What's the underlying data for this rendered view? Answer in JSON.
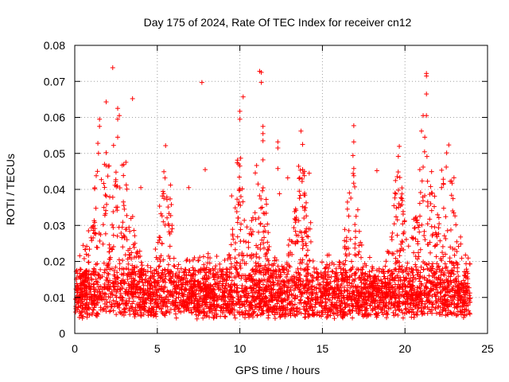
{
  "chart_data": {
    "type": "scatter",
    "title": "Day 175 of 2024, Rate Of TEC Index for receiver cn12",
    "xlabel": "GPS time / hours",
    "ylabel": "ROTI / TECUs",
    "xlim": [
      0,
      25
    ],
    "ylim": [
      0,
      0.08
    ],
    "xticks": [
      0,
      5,
      10,
      15,
      20,
      25
    ],
    "xtick_labels": [
      "0",
      "5",
      "10",
      "15",
      "20",
      "25"
    ],
    "yticks": [
      0,
      0.01,
      0.02,
      0.03,
      0.04,
      0.05,
      0.06,
      0.07,
      0.08
    ],
    "ytick_labels": [
      "0",
      "0.01",
      "0.02",
      "0.03",
      "0.04",
      "0.05",
      "0.06",
      "0.07",
      "0.08"
    ],
    "grid": true,
    "marker": "plus",
    "color": "#ff0000",
    "series": [
      {
        "name": "ROTI",
        "description_points": "dense band 0.004-0.030 over 0-24 h; selected outliers listed",
        "points": [
          [
            2.3,
            0.0738
          ],
          [
            11.2,
            0.0728
          ],
          [
            11.3,
            0.0725
          ],
          [
            21.3,
            0.0722
          ],
          [
            21.3,
            0.0715
          ],
          [
            7.7,
            0.0697
          ],
          [
            11.3,
            0.0697
          ],
          [
            10.2,
            0.0657
          ],
          [
            3.5,
            0.0652
          ],
          [
            21.3,
            0.0665
          ],
          [
            1.9,
            0.0643
          ],
          [
            2.6,
            0.0625
          ],
          [
            2.7,
            0.0605
          ],
          [
            10.0,
            0.0617
          ],
          [
            10.0,
            0.0595
          ],
          [
            21.3,
            0.0605
          ],
          [
            21.1,
            0.0605
          ],
          [
            1.5,
            0.0595
          ],
          [
            1.5,
            0.0575
          ],
          [
            2.6,
            0.0595
          ],
          [
            11.4,
            0.0575
          ],
          [
            16.9,
            0.0577
          ],
          [
            11.4,
            0.0555
          ],
          [
            13.7,
            0.0562
          ],
          [
            21.0,
            0.0562
          ],
          [
            21.2,
            0.0545
          ],
          [
            2.6,
            0.0545
          ],
          [
            11.4,
            0.0535
          ],
          [
            16.9,
            0.0532
          ],
          [
            1.4,
            0.0528
          ],
          [
            12.3,
            0.0532
          ],
          [
            13.8,
            0.0525
          ],
          [
            12.3,
            0.0515
          ],
          [
            1.9,
            0.0502
          ],
          [
            11.4,
            0.0482
          ],
          [
            10.0,
            0.0465
          ],
          [
            12.3,
            0.0458
          ],
          [
            16.9,
            0.0458
          ],
          [
            18.3,
            0.0452
          ],
          [
            20.9,
            0.0455
          ],
          [
            21.1,
            0.0462
          ],
          [
            22.5,
            0.0462
          ],
          [
            13.8,
            0.0455
          ],
          [
            16.9,
            0.0438
          ],
          [
            1.3,
            0.0438
          ],
          [
            2.5,
            0.0448
          ],
          [
            7.9,
            0.0455
          ],
          [
            14.2,
            0.0445
          ],
          [
            12.9,
            0.0432
          ],
          [
            11.1,
            0.0415
          ],
          [
            19.6,
            0.0398
          ],
          [
            4.0,
            0.0405
          ],
          [
            5.8,
            0.0412
          ],
          [
            6.9,
            0.0405
          ],
          [
            13.6,
            0.0395
          ],
          [
            12.4,
            0.0388
          ],
          [
            9.5,
            0.0382
          ]
        ]
      }
    ]
  }
}
